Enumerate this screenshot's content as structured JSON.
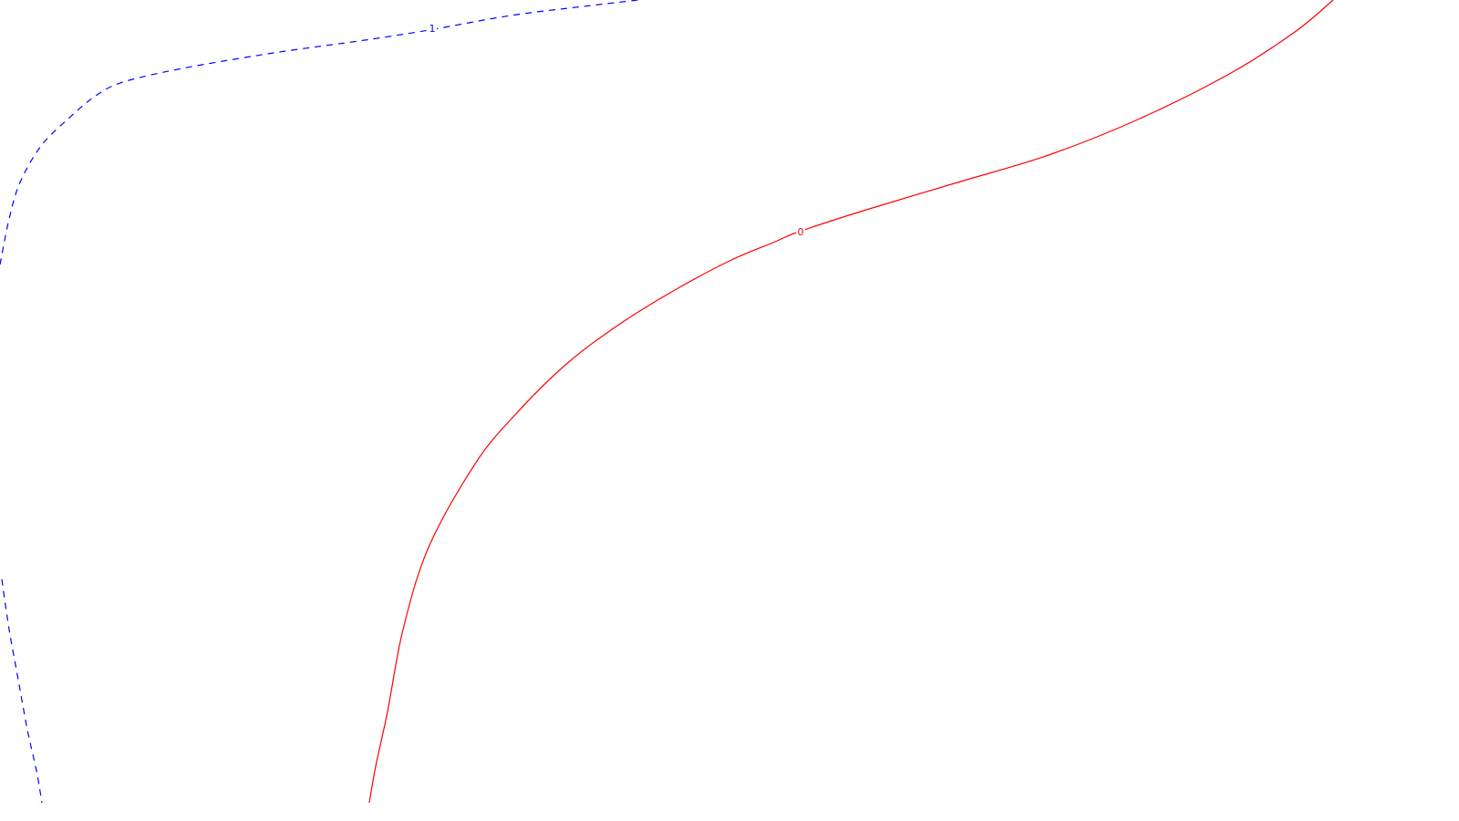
{
  "chart_data": {
    "type": "line",
    "title": "",
    "xlabel": "",
    "ylabel": "",
    "grid": false,
    "legend": "none",
    "series": [
      {
        "label": "1",
        "color": "#0000ff",
        "dash": "dashed",
        "segments": [
          [
            [
              0,
              290
            ],
            [
              10,
              240
            ],
            [
              22,
              200
            ],
            [
              45,
              160
            ],
            [
              75,
              130
            ],
            [
              105,
              105
            ],
            [
              135,
              90
            ],
            [
              200,
              75
            ],
            [
              300,
              58
            ],
            [
              400,
              44
            ],
            [
              470,
              33
            ],
            [
              560,
              17
            ],
            [
              640,
              7
            ],
            [
              700,
              0
            ]
          ],
          [
            [
              2,
              635
            ],
            [
              10,
              690
            ],
            [
              20,
              745
            ],
            [
              30,
              800
            ],
            [
              40,
              845
            ],
            [
              46,
              880
            ]
          ]
        ],
        "label_at": [
          474,
          31
        ]
      },
      {
        "label": "0",
        "color": "#ff0000",
        "dash": "solid",
        "segments": [
          [
            [
              405,
              880
            ],
            [
              412,
              840
            ],
            [
              425,
              780
            ],
            [
              442,
              690
            ],
            [
              470,
              600
            ],
            [
              520,
              510
            ],
            [
              560,
              460
            ],
            [
              620,
              400
            ],
            [
              680,
              355
            ],
            [
              740,
              318
            ],
            [
              800,
              286
            ],
            [
              850,
              265
            ],
            [
              876,
              254
            ],
            [
              950,
              230
            ],
            [
              1050,
              200
            ],
            [
              1150,
              170
            ],
            [
              1250,
              130
            ],
            [
              1350,
              80
            ],
            [
              1420,
              35
            ],
            [
              1462,
              0
            ]
          ]
        ],
        "label_at": [
          878,
          254
        ]
      }
    ]
  }
}
